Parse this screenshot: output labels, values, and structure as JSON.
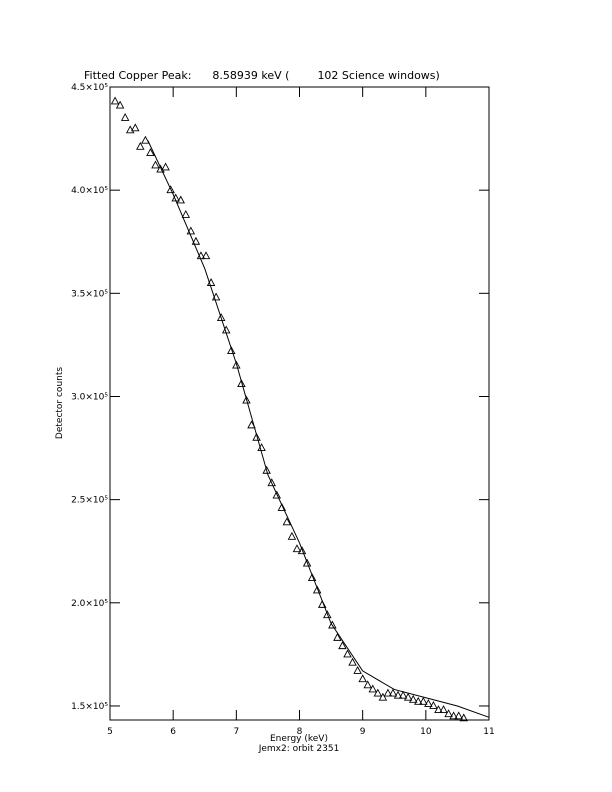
{
  "chart_data": {
    "type": "scatter",
    "title": "Fitted Copper Peak:      8.58939 keV (        102 Science windows)",
    "xlabel": "Energy (keV)",
    "ylabel": "Detector counts",
    "subtitle": "Jemx2: orbit 2351",
    "xlim": [
      5,
      11
    ],
    "xticks": [
      5,
      6,
      7,
      8,
      9,
      10,
      11
    ],
    "ylim": [
      143200,
      450000
    ],
    "yticks": [
      {
        "value": 150000,
        "label": "1.5×10⁵"
      },
      {
        "value": 200000,
        "label": "2.0×10⁵"
      },
      {
        "value": 250000,
        "label": "2.5×10⁵"
      },
      {
        "value": 300000,
        "label": "3.0×10⁵"
      },
      {
        "value": 350000,
        "label": "3.5×10⁵"
      },
      {
        "value": 400000,
        "label": "4.0×10⁵"
      },
      {
        "value": 450000,
        "label": "4.5×10⁵"
      }
    ],
    "series": [
      {
        "type": "scatter",
        "marker": "triangle",
        "color": "#000000",
        "x": [
          5.08,
          5.16,
          5.24,
          5.32,
          5.4,
          5.48,
          5.56,
          5.64,
          5.72,
          5.8,
          5.88,
          5.96,
          6.04,
          6.12,
          6.2,
          6.28,
          6.36,
          6.44,
          6.52,
          6.6,
          6.68,
          6.76,
          6.84,
          6.92,
          7.0,
          7.08,
          7.16,
          7.24,
          7.32,
          7.4,
          7.48,
          7.56,
          7.64,
          7.72,
          7.8,
          7.88,
          7.96,
          8.04,
          8.12,
          8.2,
          8.28,
          8.36,
          8.44,
          8.52,
          8.6,
          8.68,
          8.76,
          8.84,
          8.92,
          9.0,
          9.08,
          9.16,
          9.24,
          9.32,
          9.4,
          9.48,
          9.56,
          9.64,
          9.72,
          9.8,
          9.88,
          9.96,
          10.04,
          10.12,
          10.2,
          10.28,
          10.36,
          10.44,
          10.52,
          10.6
        ],
        "values": [
          443000,
          441000,
          435000,
          429000,
          430000,
          421000,
          424000,
          418000,
          412000,
          410000,
          411000,
          400000,
          396000,
          395000,
          388000,
          380000,
          375000,
          368000,
          368000,
          355000,
          348000,
          338000,
          332000,
          322000,
          315000,
          306000,
          298000,
          286000,
          280000,
          275000,
          264000,
          258000,
          252000,
          246000,
          239000,
          232000,
          226000,
          225000,
          219000,
          212000,
          206000,
          199000,
          194000,
          189000,
          183000,
          179000,
          175000,
          171000,
          167000,
          163000,
          160000,
          158000,
          156000,
          154000,
          156000,
          156000,
          155000,
          155000,
          154000,
          153000,
          152000,
          152000,
          151000,
          150000,
          148000,
          148000,
          146000,
          145000,
          145000,
          144000
        ]
      },
      {
        "type": "line",
        "color": "#000000",
        "x": [
          5.6,
          6.0,
          6.5,
          7.0,
          7.5,
          8.0,
          8.5,
          9.0,
          9.5,
          10.0,
          10.5,
          11.0
        ],
        "values": [
          424000,
          398000,
          362000,
          316000,
          262000,
          229000,
          190000,
          167000,
          158000,
          154000,
          150000,
          144500
        ]
      }
    ]
  }
}
